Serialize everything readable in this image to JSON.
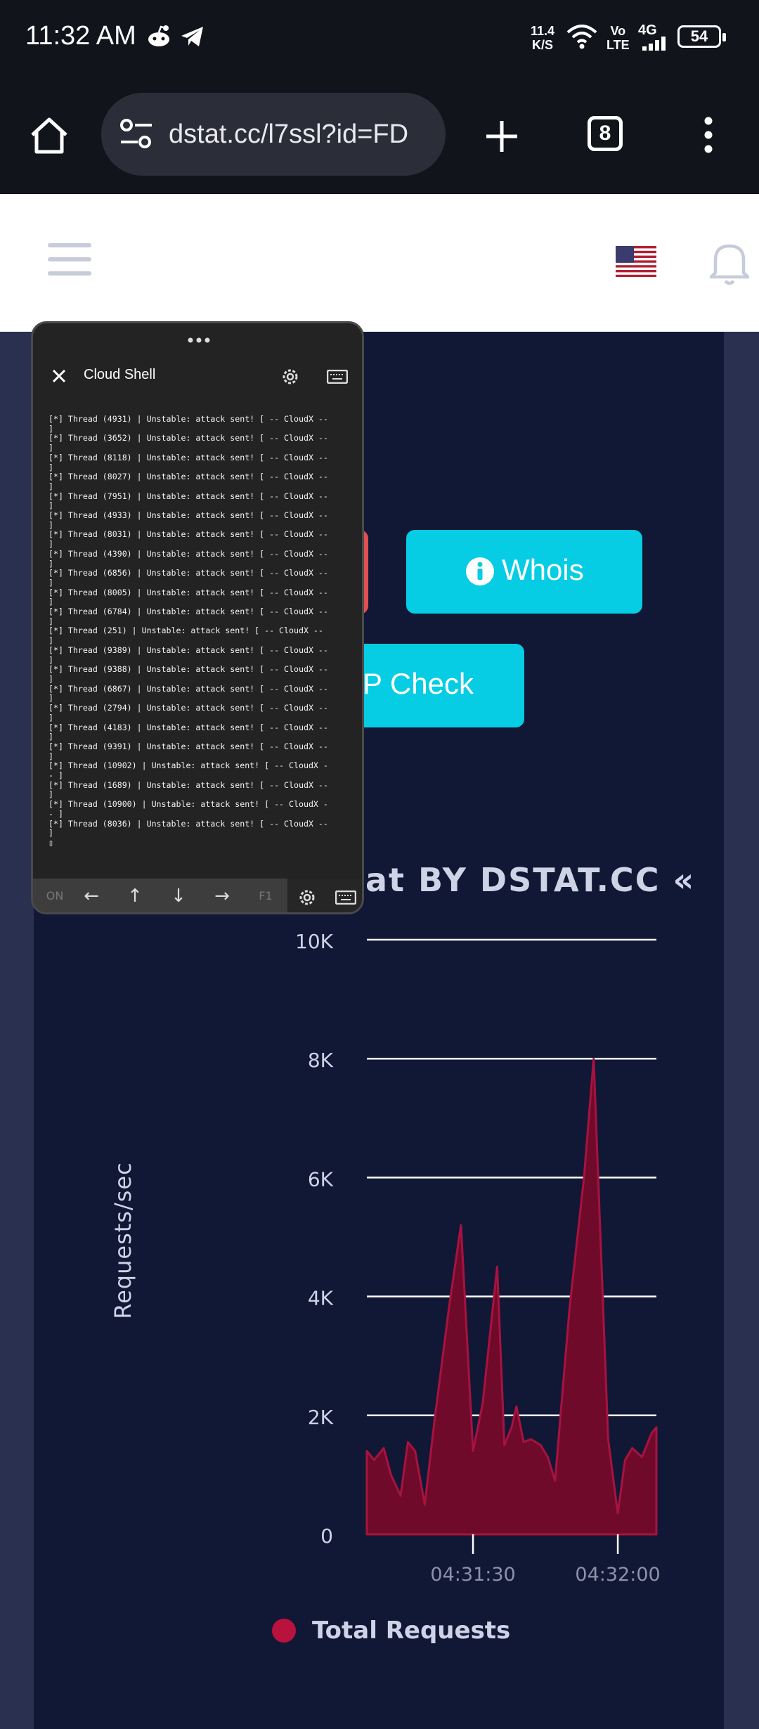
{
  "status_bar": {
    "time": "11:32 AM",
    "net_speed_value": "11.4",
    "net_speed_unit": "K/S",
    "volte_top": "Vo",
    "volte_bottom": "LTE",
    "network_type": "4G",
    "battery": "54",
    "icons": [
      "reddit-icon",
      "telegram-icon",
      "wifi-icon",
      "signal-icon"
    ]
  },
  "browser": {
    "url": "dstat.cc/l7ssl?id=FD",
    "tab_count": "8",
    "icons": [
      "home-icon",
      "site-settings-icon",
      "new-tab-icon",
      "more-icon"
    ]
  },
  "site": {
    "buttons": {
      "whois": "Whois",
      "ip_check": "P Check"
    },
    "chart_title": "at BY DSTAT.CC «"
  },
  "cloud_shell": {
    "title": "Cloud Shell",
    "log_lines": [
      "[*] Thread (4931) | Unstable: attack sent! [ -- CloudX --",
      "]",
      "[*] Thread (3652) | Unstable: attack sent! [ -- CloudX --",
      "]",
      "[*] Thread (8118) | Unstable: attack sent! [ -- CloudX --",
      "]",
      "[*] Thread (8027) | Unstable: attack sent! [ -- CloudX --",
      "]",
      "[*] Thread (7951) | Unstable: attack sent! [ -- CloudX --",
      "]",
      "[*] Thread (4933) | Unstable: attack sent! [ -- CloudX --",
      "]",
      "[*] Thread (8031) | Unstable: attack sent! [ -- CloudX --",
      "]",
      "[*] Thread (4390) | Unstable: attack sent! [ -- CloudX --",
      "]",
      "[*] Thread (6856) | Unstable: attack sent! [ -- CloudX --",
      "]",
      "[*] Thread (8005) | Unstable: attack sent! [ -- CloudX --",
      "]",
      "[*] Thread (6784) | Unstable: attack sent! [ -- CloudX --",
      "]",
      "[*] Thread (251) | Unstable: attack sent! [ -- CloudX --",
      "]",
      "[*] Thread (9389) | Unstable: attack sent! [ -- CloudX --",
      "]",
      "[*] Thread (9388) | Unstable: attack sent! [ -- CloudX --",
      "]",
      "[*] Thread (6867) | Unstable: attack sent! [ -- CloudX --",
      "]",
      "[*] Thread (2794) | Unstable: attack sent! [ -- CloudX --",
      "]",
      "[*] Thread (4183) | Unstable: attack sent! [ -- CloudX --",
      "]",
      "[*] Thread (9391) | Unstable: attack sent! [ -- CloudX --",
      "]",
      "[*] Thread (10902) | Unstable: attack sent! [ -- CloudX -",
      "- ]",
      "[*] Thread (1689) | Unstable: attack sent! [ -- CloudX --",
      "]",
      "[*] Thread (10900) | Unstable: attack sent! [ -- CloudX -",
      "- ]",
      "[*] Thread (8036) | Unstable: attack sent! [ -- CloudX --",
      "]",
      "▯"
    ],
    "toolbar": {
      "left_key": "ON",
      "right_key": "F1"
    }
  },
  "chart_data": {
    "type": "area",
    "title": "",
    "ylabel": "Requests/sec",
    "xlabel": "",
    "ylim": [
      0,
      10000
    ],
    "yticks": [
      "0",
      "2K",
      "4K",
      "6K",
      "8K",
      "10K"
    ],
    "yticks_values": [
      0,
      2000,
      4000,
      6000,
      8000,
      10000
    ],
    "xticks": [
      "04:31:30",
      "04:32:00"
    ],
    "xticks_t": [
      22,
      52
    ],
    "x_range_t": [
      0,
      60
    ],
    "legend": "bottom",
    "colors": {
      "fill": "#6f0a2a",
      "stroke": "#a8123f",
      "grid": "#ffffff",
      "background": "#111836"
    },
    "series": [
      {
        "name": "Total Requests",
        "t": [
          0,
          1.5,
          3.5,
          5,
          7,
          8.5,
          10,
          12,
          14,
          17,
          19.5,
          22,
          24,
          27,
          28.5,
          30,
          31,
          32.5,
          34,
          36,
          37.5,
          39,
          42,
          45,
          47,
          50,
          52,
          53.5,
          55,
          57,
          59,
          60
        ],
        "values": [
          1400,
          1250,
          1450,
          1000,
          650,
          1550,
          1400,
          500,
          1900,
          3800,
          5200,
          1400,
          2200,
          4500,
          1500,
          1800,
          2150,
          1550,
          1600,
          1500,
          1300,
          900,
          3800,
          6000,
          8000,
          1600,
          350,
          1250,
          1450,
          1300,
          1700,
          1800
        ]
      }
    ]
  }
}
